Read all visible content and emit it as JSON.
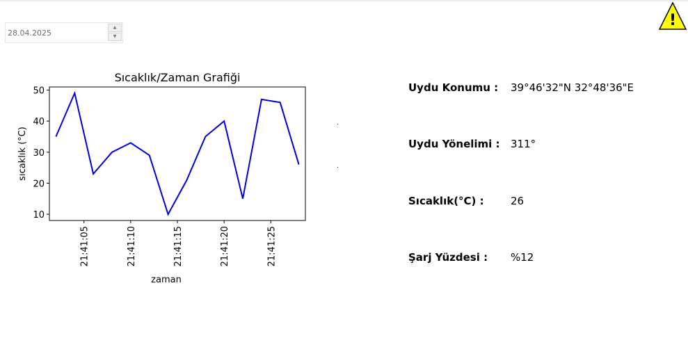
{
  "date_input": {
    "value": "28.04.2025",
    "up_glyph": "▲",
    "down_glyph": "▼"
  },
  "warning": {
    "icon": "warning-icon",
    "glyph": "!",
    "color": "#ffff00"
  },
  "info": [
    {
      "label": "Uydu Konumu :",
      "value": "39°46'32\"N 32°48'36\"E"
    },
    {
      "label": "Uydu Yönelimi :",
      "value": "311°"
    },
    {
      "label": "Sıcaklık(°C) :",
      "value": "26"
    },
    {
      "label": "Şarj Yüzdesi :",
      "value": "%12"
    }
  ],
  "chart_data": {
    "type": "line",
    "title": "Sıcaklık/Zaman Grafiği",
    "xlabel": "zaman",
    "ylabel": "sıcaklık (°C)",
    "x": [
      "21:41:02",
      "21:41:04",
      "21:41:06",
      "21:41:08",
      "21:41:10",
      "21:41:12",
      "21:41:14",
      "21:41:16",
      "21:41:18",
      "21:41:20",
      "21:41:22",
      "21:41:24",
      "21:41:26",
      "21:41:28"
    ],
    "values": [
      35,
      49,
      23,
      30,
      33,
      29,
      10,
      21,
      35,
      40,
      15,
      47,
      46,
      26
    ],
    "x_ticks": [
      "21:41:05",
      "21:41:10",
      "21:41:15",
      "21:41:20",
      "21:41:25"
    ],
    "y_ticks": [
      10,
      20,
      30,
      40,
      50
    ],
    "ylim": [
      8,
      51
    ],
    "line_color": "#0000dd",
    "grid": false
  }
}
